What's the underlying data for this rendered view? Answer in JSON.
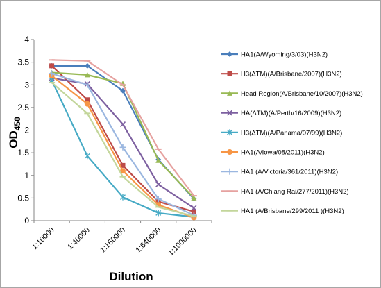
{
  "chart_data": {
    "type": "line",
    "xlabel": "Dilution",
    "ylabel": "OD",
    "ylabel_sub": "450",
    "categories": [
      "1:10000",
      "1:40000",
      "1:160000",
      "1:640000",
      "1:1000000"
    ],
    "ylim": [
      0,
      4
    ],
    "yticks": [
      "0",
      "0.5",
      "1",
      "1.5",
      "2",
      "2.5",
      "3",
      "3.5",
      "4"
    ],
    "grid": false,
    "legend_position": "right",
    "series": [
      {
        "name": "HA1(A/Wyoming/3/03)(H3N2)",
        "color": "#4a7ebb",
        "marker": "diamond",
        "values": [
          3.42,
          3.42,
          2.87,
          1.35,
          0.48
        ]
      },
      {
        "name": "H3(ΔTM)(A/Brisbane/2007)(H3N2)",
        "color": "#be4b48",
        "marker": "square",
        "values": [
          3.42,
          2.67,
          1.22,
          0.42,
          0.2
        ]
      },
      {
        "name": "Head Region(A/Brisbane/10/2007)(H3N2)",
        "color": "#98b954",
        "marker": "triangle",
        "values": [
          3.27,
          3.22,
          3.03,
          1.33,
          0.5
        ]
      },
      {
        "name": "HA(ΔTM)(A/Perth/16/2009)(H3N2)",
        "color": "#7d60a0",
        "marker": "x",
        "values": [
          3.15,
          3.02,
          2.13,
          0.8,
          0.28
        ]
      },
      {
        "name": "H3(ΔTM)(A/Panama/07/99)(H3N2)",
        "color": "#46aac5",
        "marker": "star",
        "values": [
          3.1,
          1.43,
          0.52,
          0.17,
          0.08
        ]
      },
      {
        "name": "HA1(A/Iowa/08/2011)(H3N2)",
        "color": "#f79646",
        "marker": "circle",
        "values": [
          3.2,
          2.58,
          1.1,
          0.35,
          0.07
        ]
      },
      {
        "name": "HA1 (A/Victoria/361/2011)(H3N2)",
        "color": "#9bb7e0",
        "marker": "plus",
        "values": [
          3.25,
          3.0,
          1.62,
          0.48,
          0.12
        ]
      },
      {
        "name": "HA1 (A/Chiang Rai/277/2011)(H3N2)",
        "color": "#e6a2a0",
        "marker": "dash",
        "values": [
          3.55,
          3.53,
          3.0,
          1.58,
          0.55
        ]
      },
      {
        "name": "HA1 (A/Brisbane/299/2011 )(H3N2)",
        "color": "#c3d69b",
        "marker": "dash",
        "values": [
          3.05,
          2.37,
          0.97,
          0.3,
          0.1
        ]
      }
    ]
  }
}
